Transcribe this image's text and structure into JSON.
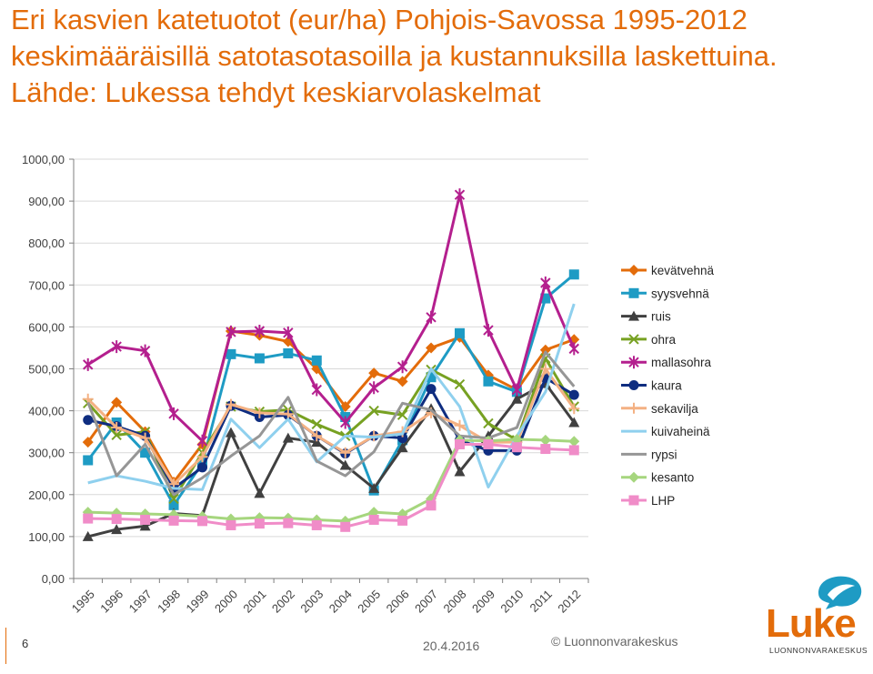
{
  "slide": {
    "title": "Eri kasvien katetuotot (eur/ha) Pohjois-Savossa 1995-2012 keskimääräisillä satotasotasoilla ja kustannuksilla laskettuina. Lähde: Lukessa tehdyt keskiarvolaskelmat",
    "page_number": "6",
    "date": "20.4.2016",
    "copyright": "© Luonnonvarakeskus",
    "logo_word": "Luke",
    "logo_sub": "LUONNONVARAKESKUS",
    "title_color": "#e36c0a"
  },
  "chart_data": {
    "type": "line",
    "title": "",
    "xlabel": "",
    "ylabel": "",
    "ylim": [
      0,
      1000
    ],
    "y_ticks": [
      "0,00",
      "100,00",
      "200,00",
      "300,00",
      "400,00",
      "500,00",
      "600,00",
      "700,00",
      "800,00",
      "900,00",
      "1000,00"
    ],
    "legend_position": "right",
    "categories": [
      "1995",
      "1996",
      "1997",
      "1998",
      "1999",
      "2000",
      "2001",
      "2002",
      "2003",
      "2004",
      "2005",
      "2006",
      "2007",
      "2008",
      "2009",
      "2010",
      "2011",
      "2012"
    ],
    "series": [
      {
        "name": "kevätvehnä",
        "color": "#e36c0a",
        "marker": "diamond",
        "values": [
          325,
          420,
          350,
          230,
          320,
          590,
          580,
          565,
          500,
          410,
          490,
          470,
          550,
          575,
          485,
          450,
          545,
          570
        ]
      },
      {
        "name": "syysvehnä",
        "color": "#1e9bc4",
        "marker": "square",
        "values": [
          282,
          372,
          300,
          175,
          275,
          535,
          525,
          537,
          520,
          385,
          210,
          330,
          480,
          585,
          470,
          445,
          668,
          725
        ]
      },
      {
        "name": "ruis",
        "color": "#404040",
        "marker": "triangle",
        "values": [
          100,
          117,
          125,
          155,
          150,
          348,
          203,
          335,
          325,
          270,
          215,
          312,
          405,
          255,
          340,
          428,
          465,
          372
        ]
      },
      {
        "name": "ohra",
        "color": "#77a122",
        "marker": "x",
        "values": [
          418,
          342,
          350,
          190,
          300,
          410,
          398,
          402,
          368,
          340,
          400,
          390,
          498,
          463,
          370,
          330,
          525,
          410
        ]
      },
      {
        "name": "mallasohra",
        "color": "#b41f8e",
        "marker": "star",
        "values": [
          510,
          553,
          543,
          393,
          328,
          588,
          590,
          586,
          450,
          372,
          455,
          505,
          623,
          915,
          592,
          450,
          705,
          548
        ]
      },
      {
        "name": "kaura",
        "color": "#0f2d80",
        "marker": "circle",
        "values": [
          378,
          363,
          340,
          215,
          265,
          412,
          385,
          390,
          340,
          298,
          340,
          335,
          452,
          330,
          305,
          305,
          478,
          438
        ]
      },
      {
        "name": "sekavilja",
        "color": "#f4b183",
        "marker": "plus",
        "values": [
          428,
          360,
          335,
          225,
          290,
          415,
          395,
          392,
          340,
          300,
          340,
          350,
          395,
          365,
          325,
          325,
          500,
          405
        ]
      },
      {
        "name": "kuivaheinä",
        "color": "#8fd0ee",
        "marker": "none",
        "values": [
          228,
          245,
          232,
          215,
          212,
          380,
          312,
          380,
          278,
          340,
          337,
          345,
          500,
          410,
          218,
          340,
          445,
          655
        ]
      },
      {
        "name": "rypsi",
        "color": "#969696",
        "marker": "none",
        "values": [
          420,
          245,
          320,
          200,
          240,
          292,
          340,
          432,
          280,
          245,
          302,
          418,
          402,
          340,
          335,
          360,
          540,
          458
        ]
      },
      {
        "name": "kesanto",
        "color": "#a6d67e",
        "marker": "diamond",
        "values": [
          158,
          156,
          154,
          152,
          148,
          142,
          145,
          144,
          140,
          137,
          158,
          154,
          190,
          330,
          328,
          332,
          330,
          327
        ]
      },
      {
        "name": "LHP",
        "color": "#f08cc8",
        "marker": "square",
        "values": [
          143,
          142,
          140,
          138,
          137,
          127,
          131,
          132,
          127,
          123,
          140,
          138,
          174,
          320,
          320,
          313,
          309,
          306
        ]
      }
    ]
  }
}
